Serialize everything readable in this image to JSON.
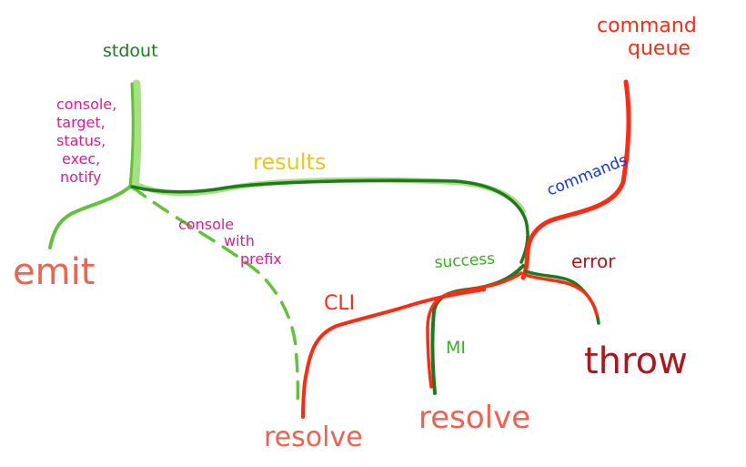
{
  "labels": {
    "stdout": "stdout",
    "command_queue_line1": "command",
    "command_queue_line2": "queue",
    "console_events": [
      "console,",
      "target,",
      "status,",
      "exec,",
      "notify"
    ],
    "results": "results",
    "commands": "commands",
    "console_with_prefix": [
      "console",
      "with",
      "prefix"
    ],
    "success": "success",
    "error": "error",
    "cli": "CLI",
    "mi": "MI",
    "emit": "emit",
    "throw": "throw",
    "resolve_left": "resolve",
    "resolve_center": "resolve"
  },
  "colors": {
    "light_green": "#86d35a",
    "green": "#5ec234",
    "dark_green": "#1d7a1d",
    "red": "#ff2a12",
    "dark_red": "#b0141c",
    "salmon": "#f2604e",
    "magenta": "#e8188c",
    "yellow": "#e8c81a",
    "blue": "#1433e6"
  }
}
